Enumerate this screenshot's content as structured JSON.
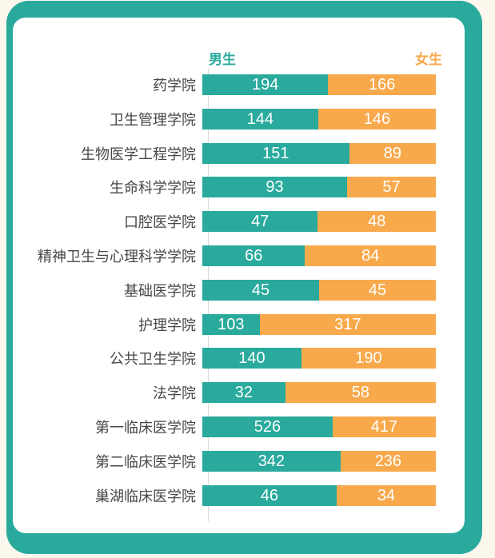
{
  "colors": {
    "teal": "#29aa9d",
    "orange": "#f8a94c",
    "cream": "#fcf7ec",
    "card": "#ffffff",
    "label": "#474747",
    "axis": "#d9d9d9"
  },
  "chart_data": {
    "type": "bar",
    "orientation": "horizontal",
    "stacked": true,
    "normalized": "each row scaled to 100% of bar width",
    "title": "",
    "xlabel": "",
    "ylabel": "",
    "grid": "off",
    "value_labels": "white numbers centered inside each segment",
    "legend": [
      {
        "label": "男生",
        "color": "#29aa9d",
        "position": "top-left-of-bars"
      },
      {
        "label": "女生",
        "color": "#f8a94c",
        "position": "top-right-of-bars"
      }
    ],
    "categories": [
      "药学院",
      "卫生管理学院",
      "生物医学工程学院",
      "生命科学学院",
      "口腔医学院",
      "精神卫生与心理科学学院",
      "基础医学院",
      "护理学院",
      "公共卫生学院",
      "法学院",
      "第一临床医学院",
      "第二临床医学院",
      "巢湖临床医学院"
    ],
    "series": [
      {
        "name": "男生",
        "color": "#29aa9d",
        "values": [
          194,
          144,
          151,
          93,
          47,
          66,
          45,
          103,
          140,
          32,
          526,
          342,
          46
        ]
      },
      {
        "name": "女生",
        "color": "#f8a94c",
        "values": [
          166,
          146,
          89,
          57,
          48,
          84,
          45,
          317,
          190,
          58,
          417,
          236,
          34
        ]
      }
    ]
  }
}
